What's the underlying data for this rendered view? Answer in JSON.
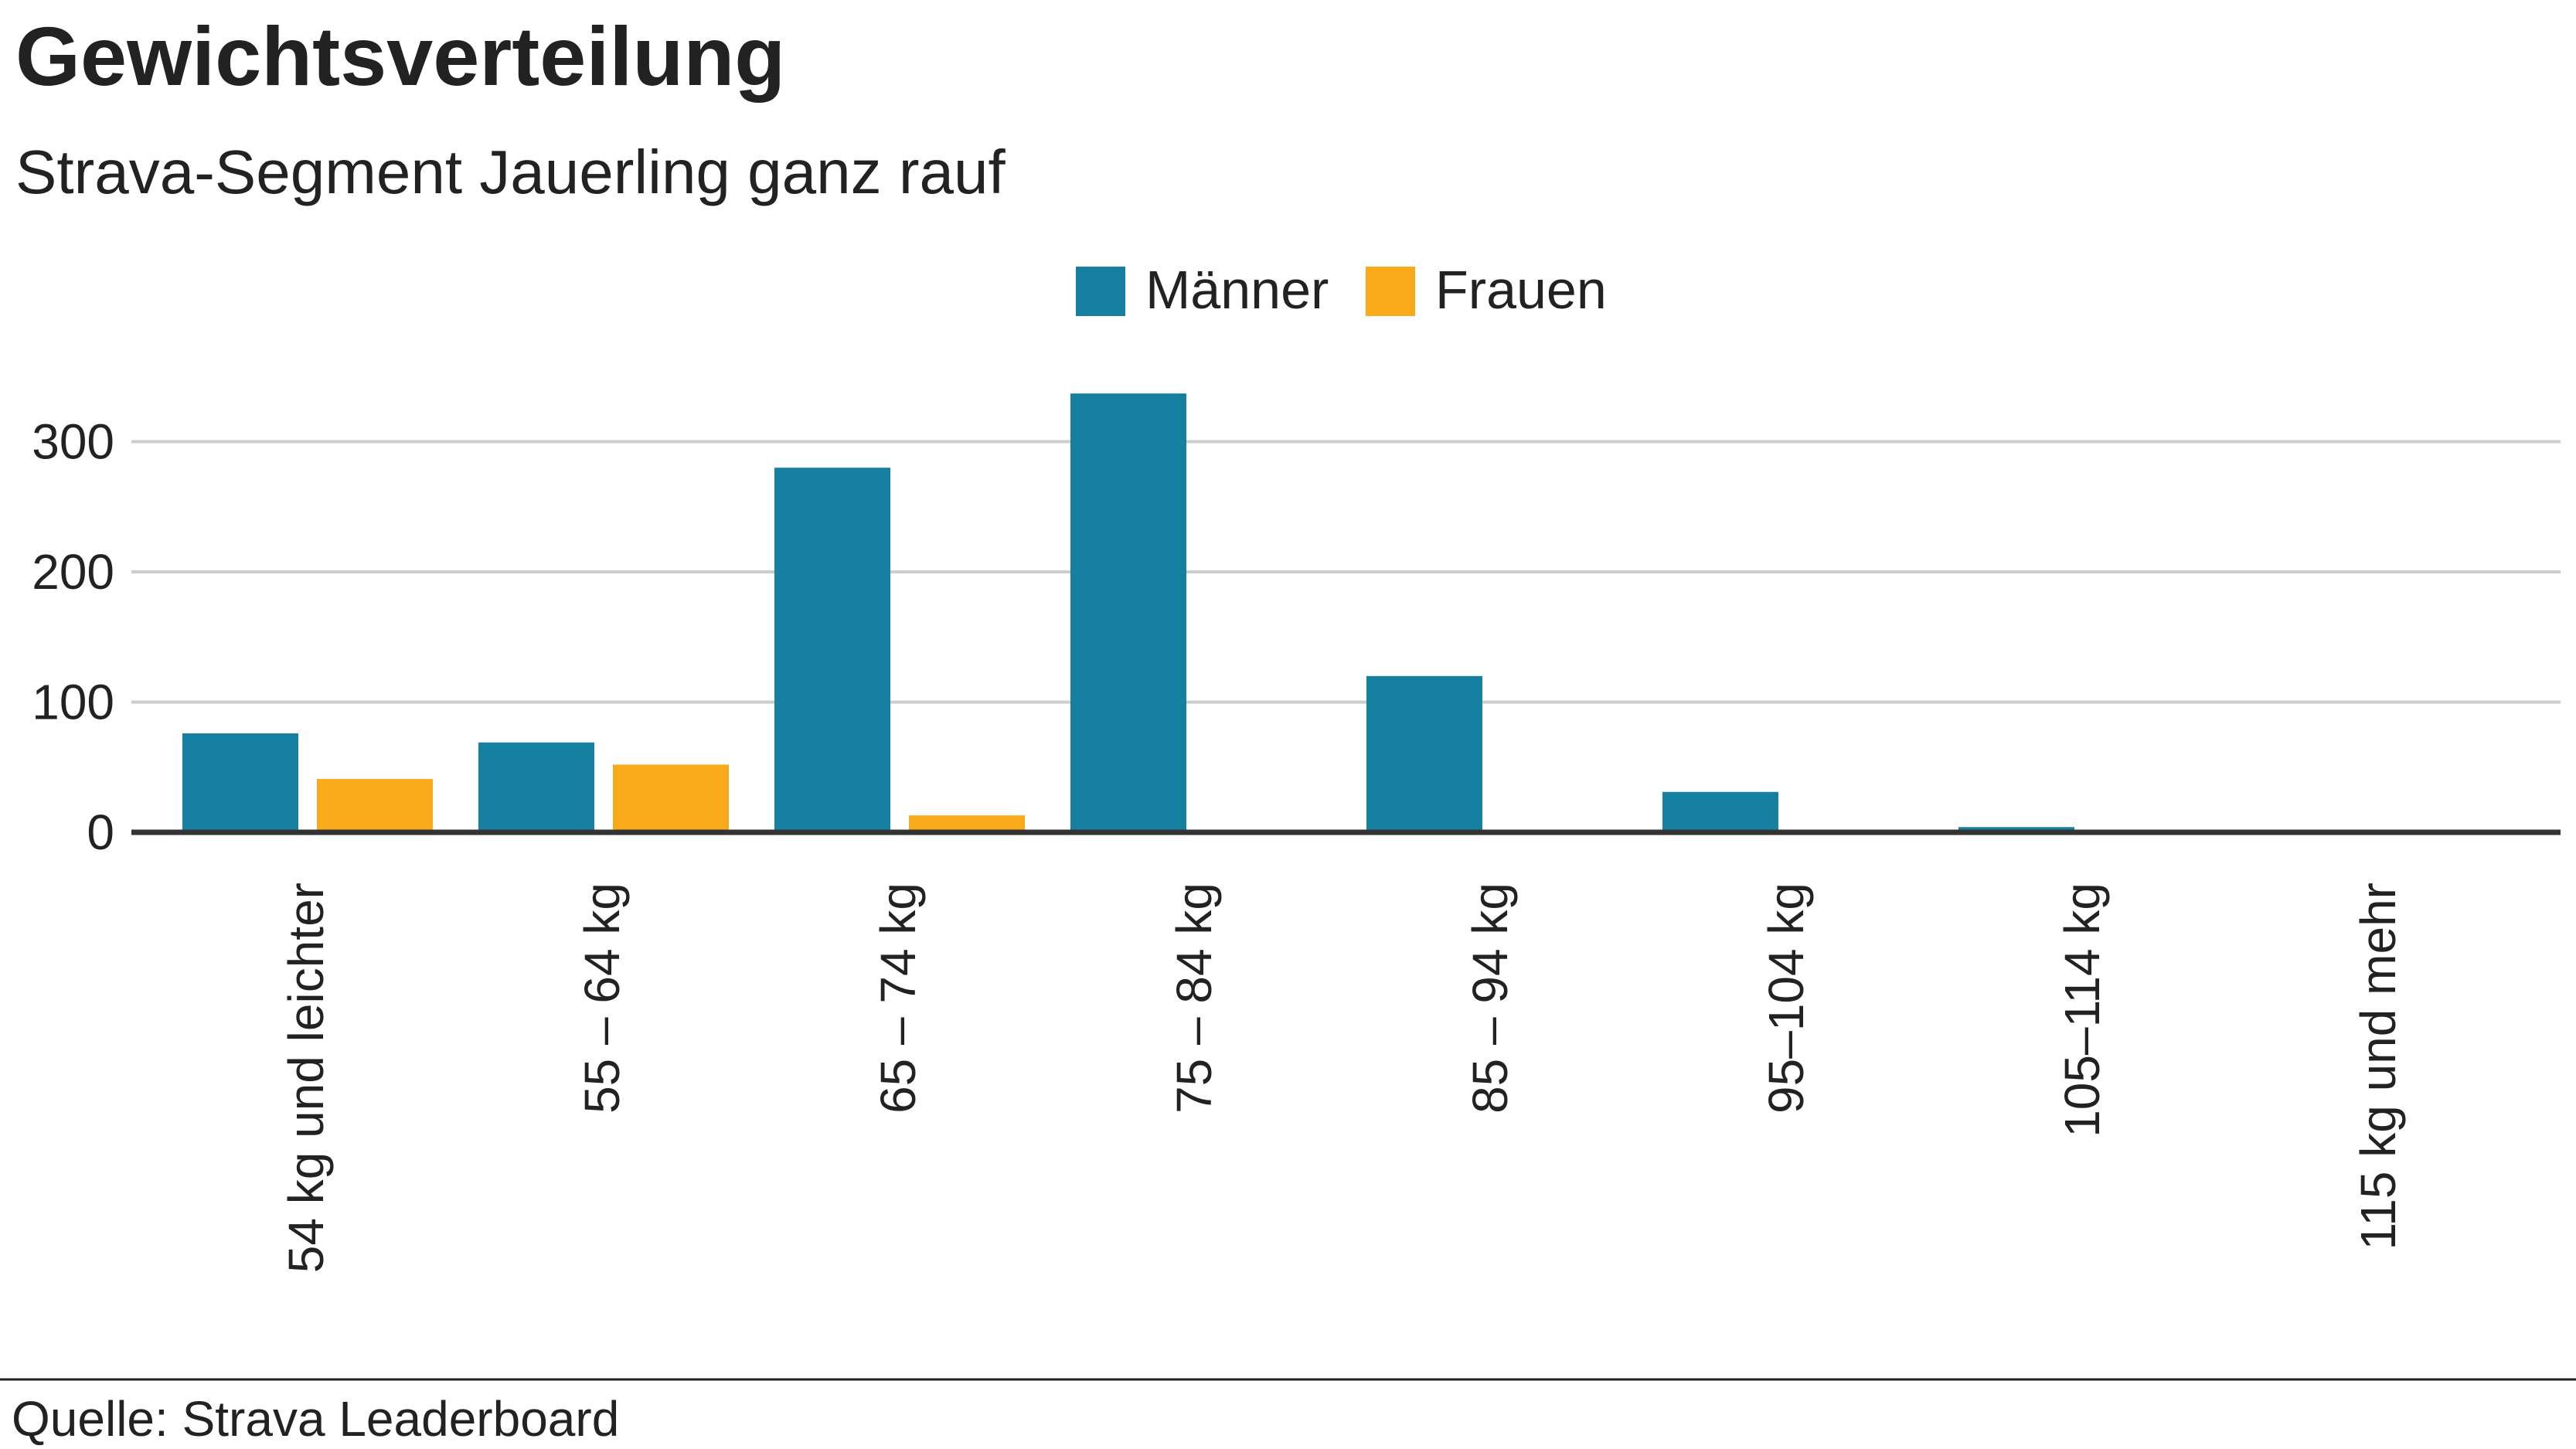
{
  "chart_data": {
    "type": "bar",
    "title": "Gewichtsverteilung",
    "subtitle": "Strava-Segment Jauerling ganz rauf",
    "categories": [
      "54 kg und leichter",
      "55 – 64 kg",
      "65 – 74 kg",
      "75 – 84 kg",
      "85 – 94 kg",
      "95–104 kg",
      "105–114 kg",
      "115 kg und mehr"
    ],
    "series": [
      {
        "name": "Männer",
        "color": "#15809f",
        "values": [
          76,
          69,
          280,
          337,
          120,
          31,
          4,
          0
        ]
      },
      {
        "name": "Frauen",
        "color": "#f9aa1b",
        "values": [
          41,
          52,
          13,
          0,
          0,
          0,
          0,
          0
        ]
      }
    ],
    "yticks": [
      0,
      100,
      200,
      300
    ],
    "ylim": [
      0,
      345
    ],
    "grid": true,
    "legend": "top-center",
    "source": "Quelle: Strava Leaderboard"
  }
}
